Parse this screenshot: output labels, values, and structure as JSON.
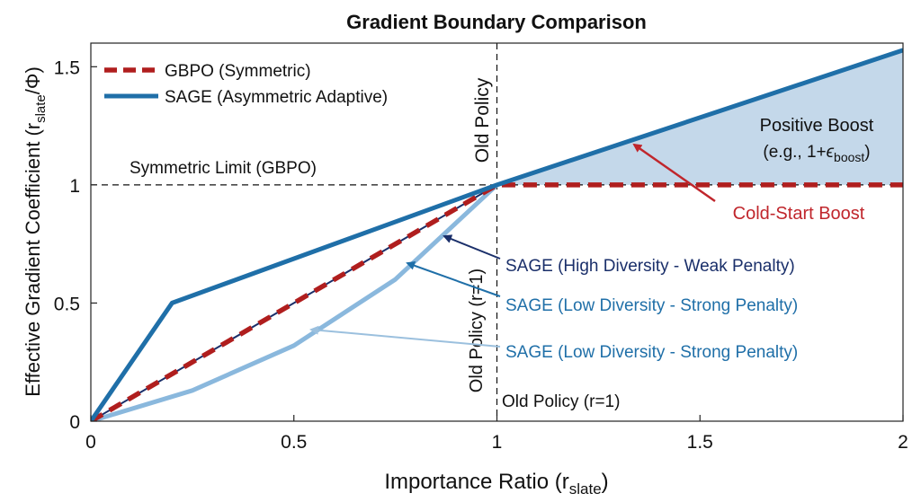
{
  "chart_data": {
    "type": "line",
    "title": "Gradient Boundary Comparison",
    "xlabel": {
      "main": "Importance Ratio (r",
      "sub": "slate",
      "close": ")"
    },
    "ylabel": {
      "main": "Effective Gradient Coefficient (r",
      "sub": "slate",
      "rest": "/Φ)"
    },
    "xlim": [
      0,
      2
    ],
    "ylim": [
      0,
      1.6
    ],
    "xticks": [
      0,
      0.5,
      1,
      1.5,
      2
    ],
    "xtick_labels": [
      "0",
      "0.5",
      "1",
      "1.5",
      "2"
    ],
    "yticks": [
      0,
      0.5,
      1,
      1.5
    ],
    "ytick_labels": [
      "0",
      "0.5",
      "1",
      "1.5"
    ],
    "legend_position": "top-left",
    "colors": {
      "gbpo": "#b01e1e",
      "sage": "#1f6fa8",
      "sage_high": "#1a2f6a",
      "sage_low": "#8ab8dd",
      "fill": "#c4d8ea",
      "annotation_low": "#1f6fa8",
      "annotation_low2": "#9bc0de",
      "cold_start": "#c0262c"
    },
    "series": [
      {
        "name": "GBPO (Symmetric)",
        "style": "dashed",
        "color": "#b01e1e",
        "x": [
          0,
          1,
          2
        ],
        "y": [
          0,
          1,
          1
        ]
      },
      {
        "name": "SAGE (Asymmetric Adaptive)",
        "style": "solid",
        "color": "#1f6fa8",
        "x": [
          0,
          0.2,
          1,
          2
        ],
        "y": [
          0,
          0.5,
          1,
          1.57
        ]
      },
      {
        "name": "SAGE (High Diversity - Weak Penalty)",
        "style": "solid",
        "color": "#1a2f6a",
        "x": [
          0,
          1
        ],
        "y": [
          0,
          1
        ],
        "in_legend": false
      },
      {
        "name": "SAGE (Low Diversity - Strong Penalty)",
        "style": "solid",
        "color": "#8ab8dd",
        "x": [
          0,
          0.25,
          0.5,
          0.75,
          1
        ],
        "y": [
          0,
          0.13,
          0.32,
          0.6,
          1
        ],
        "in_legend": false
      }
    ],
    "reference_lines": [
      {
        "orientation": "horizontal",
        "value": 1,
        "label": "Symmetric Limit (GBPO)"
      },
      {
        "orientation": "vertical",
        "value": 1,
        "label": "Old Policy"
      }
    ],
    "shaded_region": {
      "x_from": 1,
      "x_to": 2,
      "lower": 1,
      "label": "Positive Boost"
    },
    "annotations": {
      "positive_boost": "Positive Boost",
      "boost_example_pre": "(e.g., 1+",
      "boost_example_eps": "ϵ",
      "boost_example_sub": "boost",
      "boost_example_post": ")",
      "cold_start": "Cold-Start Boost",
      "sage_high": "SAGE (High Diversity - Weak Penalty)",
      "sage_low_1": "SAGE (Low Diversity - Strong Penalty)",
      "sage_low_2": "SAGE (Low Diversity - Strong Penalty)",
      "old_policy_top": "Old Policy",
      "old_policy_mid": "Old Policy (r=1)",
      "old_policy_bottom": "Old Policy (r=1)",
      "symmetric_limit": "Symmetric Limit (GBPO)"
    }
  }
}
